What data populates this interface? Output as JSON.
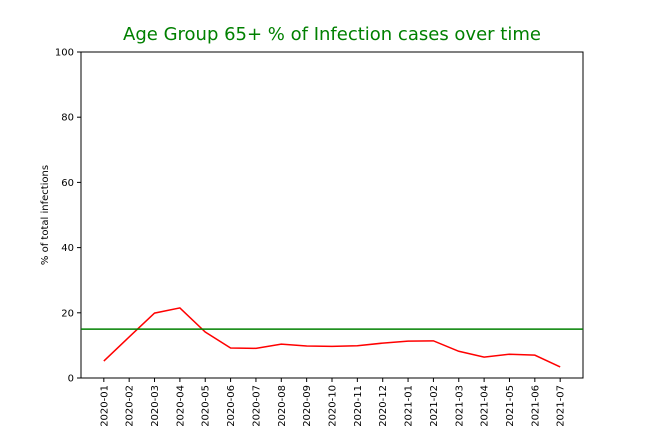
{
  "chart_data": {
    "type": "line",
    "title": "Age Group 65+ % of Infection cases over time",
    "y_label": "% of total infections",
    "categories": [
      "2020-01",
      "2020-02",
      "2020-03",
      "2020-04",
      "2020-05",
      "2020-06",
      "2020-07",
      "2020-08",
      "2020-09",
      "2020-10",
      "2020-11",
      "2020-12",
      "2021-01",
      "2021-02",
      "2021-03",
      "2021-04",
      "2021-05",
      "2021-06",
      "2021-07"
    ],
    "series": [
      {
        "name": "65+",
        "color": "red",
        "values": [
          5.2,
          12.6,
          19.9,
          21.5,
          14.1,
          9.2,
          9.1,
          10.4,
          9.8,
          9.7,
          9.9,
          10.7,
          11.3,
          11.4,
          8.2,
          6.4,
          7.3,
          7.0,
          3.4
        ]
      }
    ],
    "reference_line": {
      "value": 15.0,
      "color": "green"
    },
    "ylim": [
      0,
      100
    ],
    "yticks": [
      0,
      20,
      40,
      60,
      80,
      100
    ],
    "grid": false
  }
}
